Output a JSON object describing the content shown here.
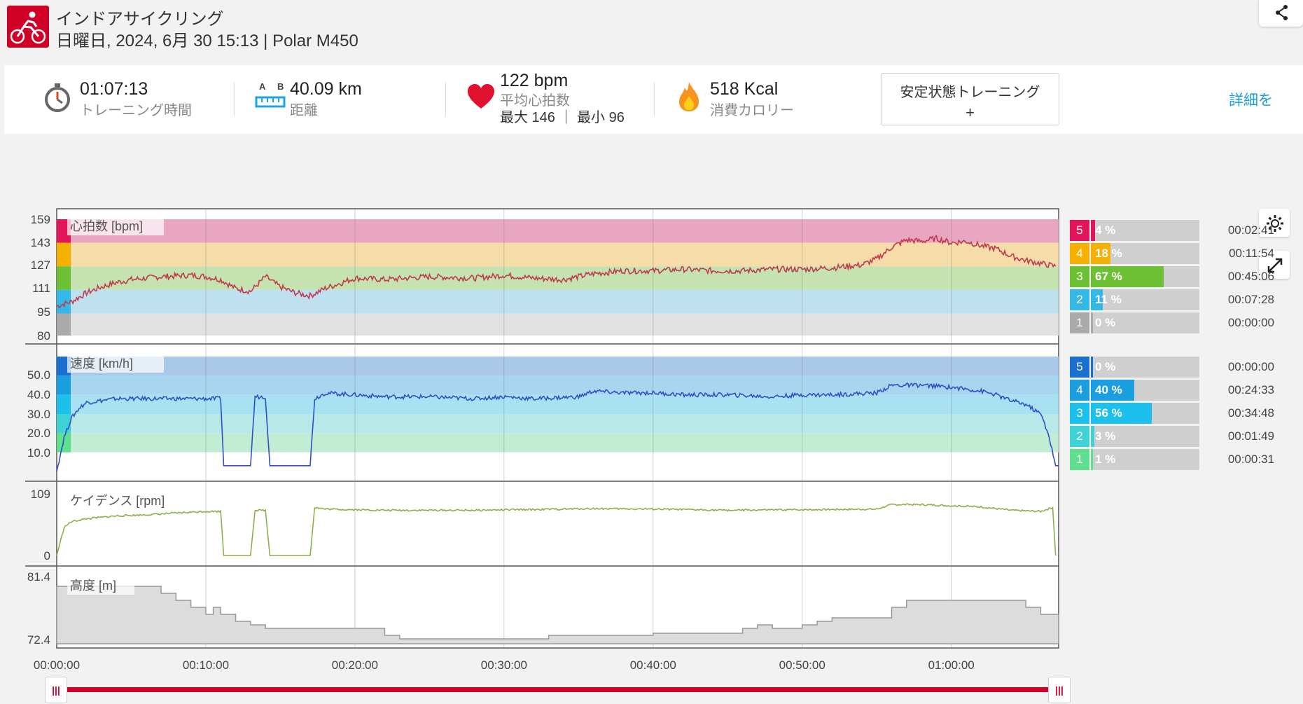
{
  "activity": {
    "title": "インドアサイクリング",
    "subtitle": "日曜日, 2024, 6月 30 15:13 | Polar M450",
    "sport_icon": "cycling-icon",
    "brand_color": "#d10027"
  },
  "summary": {
    "duration": {
      "value": "01:07:13",
      "label": "トレーニング時間",
      "icon": "stopwatch-icon"
    },
    "distance": {
      "value": "40.09 km",
      "label": "距離",
      "icon": "distance-ruler-icon",
      "icon_letters": "A B"
    },
    "heart_rate": {
      "value": "122 bpm",
      "label": "平均心拍数",
      "max_min": "最大 146 ｜ 最小 96",
      "icon": "heart-icon"
    },
    "calories": {
      "value": "518 Kcal",
      "label": "消費カロリー",
      "icon": "flame-icon"
    },
    "steady_button": {
      "label": "安定状態トレーニング",
      "plus": "+"
    },
    "detail_link": "詳細を"
  },
  "chart_data": [
    {
      "type": "line",
      "title": "心拍数 [bpm]",
      "ytick_labels": [
        "159",
        "143",
        "127",
        "111",
        "95",
        "80"
      ],
      "ylim": [
        80,
        159
      ],
      "zone_bands": [
        {
          "zone": 5,
          "from": 143,
          "to": 159,
          "color": "#e8a6c0"
        },
        {
          "zone": 4,
          "from": 127,
          "to": 143,
          "color": "#f5dca8"
        },
        {
          "zone": 3,
          "from": 111,
          "to": 127,
          "color": "#c5e3b0"
        },
        {
          "zone": 2,
          "from": 95,
          "to": 111,
          "color": "#bfe0ee"
        },
        {
          "zone": 1,
          "from": 80,
          "to": 95,
          "color": "#e2e2e2"
        }
      ],
      "series": [
        {
          "color": "#c0394f",
          "x_minutes": [
            0,
            1,
            2,
            3,
            4,
            5,
            7,
            9,
            10,
            11,
            12,
            13,
            14,
            15,
            16,
            17,
            18,
            20,
            22,
            25,
            28,
            30,
            32,
            34,
            36,
            38,
            40,
            42,
            44,
            46,
            48,
            50,
            52,
            54,
            55,
            56,
            57,
            58,
            59,
            60,
            61,
            62,
            63,
            64,
            65,
            66,
            67
          ],
          "values": [
            100,
            103,
            109,
            113,
            116,
            118,
            120,
            121,
            120,
            118,
            112,
            110,
            120,
            113,
            109,
            107,
            112,
            119,
            118,
            120,
            119,
            121,
            119,
            118,
            122,
            124,
            124,
            125,
            124,
            124,
            125,
            125,
            126,
            128,
            132,
            140,
            145,
            144,
            146,
            143,
            144,
            141,
            139,
            134,
            131,
            129,
            127
          ]
        }
      ]
    },
    {
      "type": "line",
      "title": "速度 [km/h]",
      "ytick_labels": [
        "50.0",
        "40.0",
        "30.0",
        "20.0",
        "10.0"
      ],
      "ylim": [
        0,
        60
      ],
      "zone_bands": [
        {
          "zone": 5,
          "from": 50,
          "to": 60,
          "color": "#aac8e8"
        },
        {
          "zone": 4,
          "from": 40,
          "to": 50,
          "color": "#a8d6ef"
        },
        {
          "zone": 3,
          "from": 30,
          "to": 40,
          "color": "#a8e2f2"
        },
        {
          "zone": 2,
          "from": 20,
          "to": 30,
          "color": "#b8e8e8"
        },
        {
          "zone": 1,
          "from": 10,
          "to": 20,
          "color": "#c2ecd4"
        }
      ],
      "series": [
        {
          "color": "#2e4fc7",
          "x_minutes": [
            0,
            0.5,
            1,
            1.5,
            2,
            3,
            4,
            6,
            8,
            10,
            11,
            11.2,
            13,
            13.3,
            14,
            14.3,
            17,
            17.3,
            18,
            20,
            22,
            25,
            28,
            30,
            32,
            35,
            36,
            38,
            40,
            42,
            45,
            48,
            50,
            52,
            55,
            56,
            58,
            60,
            62,
            63,
            64,
            65,
            66,
            66.5,
            67,
            67.2
          ],
          "values": [
            0,
            18,
            28,
            33,
            36,
            37,
            38,
            38,
            38,
            38,
            38,
            3,
            3,
            39,
            39,
            3,
            3,
            38,
            41,
            40,
            39,
            39,
            38,
            39,
            38,
            39,
            42,
            41,
            41,
            40,
            40,
            39,
            40,
            40,
            41,
            45,
            45,
            44,
            42,
            40,
            37,
            35,
            30,
            20,
            3,
            3
          ]
        }
      ]
    },
    {
      "type": "line",
      "title": "ケイデンス [rpm]",
      "ytick_labels": [
        "109",
        "0"
      ],
      "ylim": [
        0,
        109
      ],
      "series": [
        {
          "color": "#8db04a",
          "x_minutes": [
            0,
            0.5,
            1,
            2,
            4,
            6,
            8,
            10,
            11,
            11.2,
            13,
            13.3,
            14,
            14.3,
            17,
            17.3,
            18,
            22,
            28,
            34,
            36,
            40,
            45,
            50,
            55,
            56,
            58,
            60,
            62,
            64,
            66,
            66.8,
            67
          ],
          "values": [
            0,
            50,
            60,
            65,
            70,
            72,
            75,
            78,
            78,
            0,
            0,
            80,
            80,
            0,
            0,
            85,
            82,
            80,
            80,
            82,
            83,
            82,
            80,
            81,
            82,
            90,
            90,
            88,
            86,
            80,
            78,
            85,
            0
          ]
        }
      ]
    },
    {
      "type": "area",
      "title": "高度 [m]",
      "ytick_labels": [
        "81.4",
        "72.4"
      ],
      "ylim": [
        72.4,
        81.4
      ],
      "series": [
        {
          "color": "#9a9a9a",
          "step_x_minutes": [
            0,
            7,
            8,
            9,
            10,
            10.5,
            11,
            12,
            13,
            14,
            20,
            22,
            23,
            24,
            25,
            26,
            27,
            33,
            40,
            41,
            42,
            46,
            47,
            48,
            49,
            50,
            51,
            52,
            53,
            56,
            57,
            64,
            65,
            66,
            67
          ],
          "values": [
            80,
            79,
            78,
            77,
            76,
            77,
            76,
            75,
            74.5,
            74,
            74,
            73,
            72.5,
            72.5,
            72.5,
            72.5,
            72.5,
            73,
            73.3,
            73.3,
            73.3,
            74,
            74.5,
            74,
            74,
            74.5,
            75,
            75.5,
            75.5,
            77,
            78,
            78,
            77,
            76,
            76
          ]
        }
      ]
    }
  ],
  "x_axis_ticks": [
    "00:00:00",
    "00:10:00",
    "00:20:00",
    "00:30:00",
    "00:40:00",
    "00:50:00",
    "01:00:00"
  ],
  "hr_zones": [
    {
      "zone": "5",
      "pct": "4 %",
      "time": "00:02:41",
      "fill": 0.04,
      "color": "#e0155c"
    },
    {
      "zone": "4",
      "pct": "18 %",
      "time": "00:11:54",
      "fill": 0.18,
      "color": "#f5b000"
    },
    {
      "zone": "3",
      "pct": "67 %",
      "time": "00:45:06",
      "fill": 0.67,
      "color": "#6dc033"
    },
    {
      "zone": "2",
      "pct": "11 %",
      "time": "00:07:28",
      "fill": 0.11,
      "color": "#33b8e8"
    },
    {
      "zone": "1",
      "pct": "0 %",
      "time": "00:00:00",
      "fill": 0.0,
      "color": "#aaaaaa"
    }
  ],
  "speed_zones": [
    {
      "zone": "5",
      "pct": "0 %",
      "time": "00:00:00",
      "fill": 0.0,
      "color": "#1a6fd0"
    },
    {
      "zone": "4",
      "pct": "40 %",
      "time": "00:24:33",
      "fill": 0.4,
      "color": "#1a9ee0"
    },
    {
      "zone": "3",
      "pct": "56 %",
      "time": "00:34:48",
      "fill": 0.56,
      "color": "#1cc0ec"
    },
    {
      "zone": "2",
      "pct": "3 %",
      "time": "00:01:49",
      "fill": 0.03,
      "color": "#3ed1d6"
    },
    {
      "zone": "1",
      "pct": "1 %",
      "time": "00:00:31",
      "fill": 0.01,
      "color": "#5ee08e"
    }
  ],
  "controls": {
    "settings_icon": "gear-icon",
    "expand_icon": "expand-icon",
    "share_icon": "share-icon",
    "range_handle_label": "|||",
    "range_color": "#d10027"
  }
}
